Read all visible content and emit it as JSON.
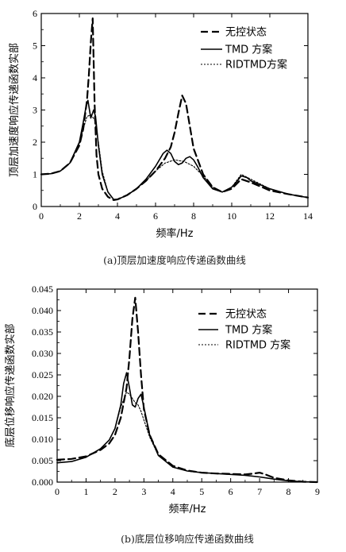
{
  "chart_data": [
    {
      "type": "line",
      "xlabel": "频率/Hz",
      "ylabel": "顶层加速度响应传递函数实部",
      "caption": "(a)顶层加速度响应传递函数曲线",
      "xlim": [
        0,
        14
      ],
      "ylim": [
        0,
        6
      ],
      "xticks": [
        "0",
        "2",
        "4",
        "6",
        "8",
        "10",
        "12",
        "14"
      ],
      "yticks": [
        "0",
        "1",
        "2",
        "3",
        "4",
        "5",
        "6"
      ],
      "legend_position": "top-right",
      "series": [
        {
          "name": "无控状态",
          "style": "dashed",
          "x": [
            0,
            0.5,
            1.0,
            1.5,
            2.0,
            2.2,
            2.4,
            2.5,
            2.6,
            2.7,
            2.8,
            2.9,
            3.0,
            3.2,
            3.5,
            3.8,
            4.0,
            4.5,
            5.0,
            5.5,
            6.0,
            6.5,
            6.8,
            7.0,
            7.2,
            7.4,
            7.6,
            7.8,
            8.0,
            8.5,
            9.0,
            9.5,
            10.0,
            10.5,
            11.0,
            12.0,
            13.0,
            14.0
          ],
          "y": [
            1.0,
            1.02,
            1.1,
            1.35,
            1.9,
            2.4,
            3.3,
            4.1,
            5.1,
            5.85,
            3.2,
            1.6,
            1.0,
            0.55,
            0.3,
            0.2,
            0.22,
            0.35,
            0.55,
            0.8,
            1.1,
            1.5,
            1.85,
            2.3,
            2.9,
            3.45,
            3.2,
            2.5,
            1.8,
            1.0,
            0.6,
            0.45,
            0.55,
            0.85,
            0.75,
            0.5,
            0.38,
            0.28
          ]
        },
        {
          "name": "TMD 方案",
          "style": "solid",
          "x": [
            0,
            0.5,
            1.0,
            1.5,
            2.0,
            2.2,
            2.35,
            2.45,
            2.6,
            2.75,
            2.85,
            3.0,
            3.2,
            3.5,
            3.8,
            4.0,
            4.5,
            5.0,
            5.5,
            6.0,
            6.4,
            6.6,
            6.8,
            7.0,
            7.2,
            7.4,
            7.6,
            7.8,
            8.0,
            8.2,
            8.5,
            9.0,
            9.5,
            10.0,
            10.3,
            10.5,
            10.8,
            11.0,
            12.0,
            13.0,
            14.0
          ],
          "y": [
            1.0,
            1.02,
            1.1,
            1.35,
            2.0,
            2.6,
            3.1,
            3.3,
            2.75,
            3.0,
            2.8,
            1.9,
            1.0,
            0.45,
            0.22,
            0.22,
            0.35,
            0.55,
            0.85,
            1.25,
            1.65,
            1.75,
            1.65,
            1.4,
            1.3,
            1.35,
            1.5,
            1.55,
            1.45,
            1.25,
            0.9,
            0.55,
            0.45,
            0.6,
            0.8,
            0.95,
            0.9,
            0.8,
            0.55,
            0.38,
            0.28
          ]
        },
        {
          "name": "RIDTMD方案",
          "style": "dotted",
          "x": [
            0,
            0.5,
            1.0,
            1.5,
            2.0,
            2.2,
            2.4,
            2.6,
            2.8,
            3.0,
            3.2,
            3.5,
            3.8,
            4.0,
            4.5,
            5.0,
            5.5,
            6.0,
            6.5,
            7.0,
            7.5,
            8.0,
            8.5,
            9.0,
            9.5,
            10.0,
            10.5,
            11.0,
            12.0,
            13.0,
            14.0
          ],
          "y": [
            1.0,
            1.02,
            1.1,
            1.35,
            1.95,
            2.4,
            2.8,
            2.85,
            2.7,
            2.0,
            1.1,
            0.45,
            0.22,
            0.22,
            0.35,
            0.55,
            0.8,
            1.1,
            1.35,
            1.45,
            1.4,
            1.25,
            0.95,
            0.6,
            0.45,
            0.6,
            1.0,
            0.85,
            0.55,
            0.38,
            0.28
          ]
        }
      ]
    },
    {
      "type": "line",
      "xlabel": "频率/Hz",
      "ylabel": "底层位移响应传递函数实部",
      "caption": "(b)底层位移响应传递函数曲线",
      "xlim": [
        0,
        9
      ],
      "ylim": [
        0,
        0.045
      ],
      "xticks": [
        "0",
        "1",
        "2",
        "3",
        "4",
        "5",
        "6",
        "7",
        "8",
        "9"
      ],
      "yticks": [
        "0.000",
        "0.005",
        "0.010",
        "0.015",
        "0.020",
        "0.025",
        "0.030",
        "0.035",
        "0.040",
        "0.045"
      ],
      "legend_position": "top-right",
      "series": [
        {
          "name": "无控状态",
          "style": "dashed",
          "x": [
            0,
            0.5,
            1.0,
            1.5,
            1.8,
            2.0,
            2.2,
            2.4,
            2.5,
            2.6,
            2.7,
            2.8,
            2.9,
            3.0,
            3.2,
            3.5,
            4.0,
            4.5,
            5.0,
            5.5,
            6.0,
            6.5,
            6.8,
            7.0,
            7.2,
            7.5,
            8.0,
            8.5,
            9.0
          ],
          "y": [
            0.0052,
            0.0054,
            0.006,
            0.0075,
            0.009,
            0.011,
            0.015,
            0.022,
            0.029,
            0.038,
            0.043,
            0.035,
            0.025,
            0.017,
            0.011,
            0.0065,
            0.0038,
            0.0027,
            0.0022,
            0.002,
            0.0019,
            0.0018,
            0.002,
            0.0022,
            0.0018,
            0.001,
            0.0004,
            0.0001,
            0.0
          ]
        },
        {
          "name": "TMD 方案",
          "style": "solid",
          "x": [
            0,
            0.5,
            1.0,
            1.5,
            1.8,
            2.0,
            2.2,
            2.3,
            2.4,
            2.5,
            2.6,
            2.7,
            2.8,
            2.9,
            3.0,
            3.2,
            3.5,
            4.0,
            4.5,
            5.0,
            5.5,
            6.0,
            6.5,
            7.0,
            7.5,
            8.0,
            8.5,
            9.0
          ],
          "y": [
            0.0045,
            0.0048,
            0.0058,
            0.0078,
            0.0098,
            0.0125,
            0.018,
            0.023,
            0.0255,
            0.022,
            0.018,
            0.0175,
            0.0195,
            0.0205,
            0.0175,
            0.011,
            0.0062,
            0.0035,
            0.0026,
            0.0022,
            0.002,
            0.0018,
            0.0016,
            0.0012,
            0.0007,
            0.0003,
            0.0001,
            0.0
          ]
        },
        {
          "name": "RIDTMD 方案",
          "style": "dotted",
          "x": [
            0,
            0.5,
            1.0,
            1.5,
            1.8,
            2.0,
            2.2,
            2.4,
            2.5,
            2.6,
            2.7,
            2.8,
            2.9,
            3.0,
            3.2,
            3.5,
            4.0,
            4.5,
            5.0,
            5.5,
            6.0,
            6.5,
            7.0,
            7.5,
            8.0,
            8.5,
            9.0
          ],
          "y": [
            0.0045,
            0.0048,
            0.0058,
            0.0078,
            0.0098,
            0.0125,
            0.0175,
            0.021,
            0.0205,
            0.0195,
            0.0185,
            0.018,
            0.0165,
            0.0145,
            0.0105,
            0.0062,
            0.0035,
            0.0026,
            0.0022,
            0.002,
            0.0018,
            0.0016,
            0.0012,
            0.0007,
            0.0003,
            0.0001,
            0.0
          ]
        }
      ]
    }
  ]
}
